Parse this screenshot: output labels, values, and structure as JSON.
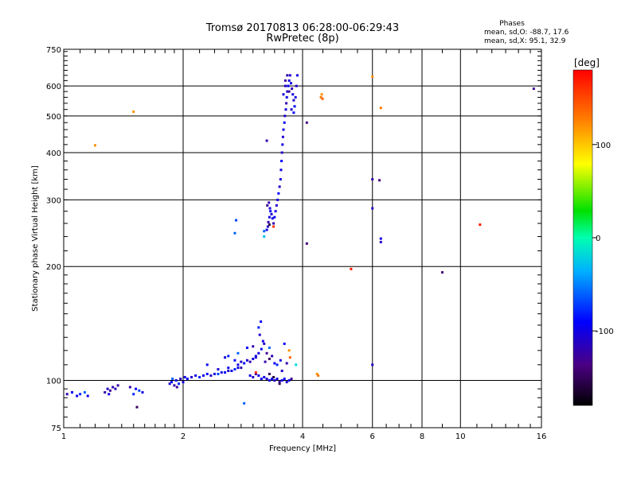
{
  "chart_data": {
    "type": "scatter",
    "title": "Tromsø 20170813 06:28:00-06:29:43",
    "subtitle": "RwPretec (8p)",
    "xlabel": "Frequency [MHz]",
    "ylabel": "Stationary phase Virtual Height [km]",
    "x_scale": "log",
    "y_scale": "log",
    "xlim": [
      1,
      16
    ],
    "ylim": [
      75,
      750
    ],
    "x_ticks": [
      1,
      2,
      4,
      6,
      8,
      10,
      16
    ],
    "y_ticks": [
      75,
      100,
      200,
      300,
      400,
      500,
      600,
      750
    ],
    "grid": true,
    "phase_info": {
      "heading": "Phases",
      "line_o": "mean, sd,O: -88.7, 17.6",
      "line_x": "mean, sd,X:  95.1, 32.9"
    },
    "colorbar": {
      "label": "[deg]",
      "range": [
        -180,
        180
      ],
      "ticks": [
        100,
        0,
        -100
      ],
      "tick_labels": [
        "100",
        "0",
        "-100"
      ]
    },
    "points": [
      [
        1.02,
        92,
        -120
      ],
      [
        1.05,
        93,
        -90
      ],
      [
        1.08,
        91,
        -100
      ],
      [
        1.1,
        92,
        -80
      ],
      [
        1.13,
        93,
        -60
      ],
      [
        1.15,
        91,
        -100
      ],
      [
        1.27,
        93,
        -120
      ],
      [
        1.29,
        95,
        -110
      ],
      [
        1.31,
        94,
        -130
      ],
      [
        1.33,
        96,
        -120
      ],
      [
        1.35,
        95,
        -115
      ],
      [
        1.37,
        97,
        -125
      ],
      [
        1.3,
        92,
        -100
      ],
      [
        1.5,
        92,
        -80
      ],
      [
        1.52,
        95,
        -90
      ],
      [
        1.55,
        94,
        -70
      ],
      [
        1.58,
        93,
        -100
      ],
      [
        1.47,
        96,
        -120
      ],
      [
        1.53,
        85,
        -150
      ],
      [
        1.85,
        98,
        -110
      ],
      [
        1.87,
        99,
        -90
      ],
      [
        1.9,
        97,
        -120
      ],
      [
        1.92,
        100,
        -100
      ],
      [
        1.95,
        98,
        -80
      ],
      [
        1.97,
        101,
        -115
      ],
      [
        2.0,
        99,
        -100
      ],
      [
        1.88,
        101,
        -60
      ],
      [
        1.93,
        96,
        -130
      ],
      [
        2.02,
        102,
        -100
      ],
      [
        2.05,
        101,
        -90
      ],
      [
        2.1,
        102,
        -110
      ],
      [
        2.15,
        103,
        -100
      ],
      [
        2.2,
        102,
        -80
      ],
      [
        2.25,
        103,
        -100
      ],
      [
        2.3,
        104,
        -90
      ],
      [
        2.35,
        103,
        -110
      ],
      [
        2.4,
        104,
        -100
      ],
      [
        2.45,
        104,
        -70
      ],
      [
        2.5,
        105,
        -100
      ],
      [
        2.55,
        105,
        -90
      ],
      [
        2.6,
        106,
        -110
      ],
      [
        2.65,
        106,
        -100
      ],
      [
        2.7,
        107,
        -80
      ],
      [
        2.75,
        108,
        -100
      ],
      [
        2.8,
        108,
        -120
      ],
      [
        2.3,
        110,
        -90
      ],
      [
        2.45,
        107,
        -110
      ],
      [
        2.55,
        115,
        -100
      ],
      [
        2.6,
        108,
        -95
      ],
      [
        2.7,
        113,
        -90
      ],
      [
        2.75,
        110,
        -100
      ],
      [
        2.8,
        112,
        -110
      ],
      [
        2.85,
        111,
        -90
      ],
      [
        2.9,
        113,
        -100
      ],
      [
        2.95,
        112,
        -120
      ],
      [
        3.0,
        114,
        -100
      ],
      [
        3.05,
        115,
        -110
      ],
      [
        3.1,
        118,
        -100
      ],
      [
        3.15,
        121,
        -90
      ],
      [
        3.2,
        125,
        -110
      ],
      [
        2.6,
        116,
        -80
      ],
      [
        2.75,
        118,
        -60
      ],
      [
        2.85,
        87,
        -60
      ],
      [
        2.9,
        122,
        -90
      ],
      [
        3.0,
        123,
        -120
      ],
      [
        3.05,
        116,
        -100
      ],
      [
        3.1,
        138,
        -80
      ],
      [
        3.12,
        132,
        -110
      ],
      [
        3.14,
        143,
        -90
      ],
      [
        3.18,
        127,
        -100
      ],
      [
        3.22,
        112,
        -120
      ],
      [
        3.25,
        118,
        -130
      ],
      [
        3.3,
        114,
        -150
      ],
      [
        3.35,
        116,
        -120
      ],
      [
        3.4,
        111,
        -100
      ],
      [
        3.45,
        110,
        -80
      ],
      [
        3.52,
        113,
        -100
      ],
      [
        3.55,
        106,
        -110
      ],
      [
        3.3,
        122,
        -60
      ],
      [
        3.6,
        125,
        -90
      ],
      [
        3.65,
        111,
        -120
      ],
      [
        2.95,
        103,
        -100
      ],
      [
        3.0,
        102,
        -110
      ],
      [
        3.05,
        104,
        -120
      ],
      [
        3.1,
        103,
        -100
      ],
      [
        3.15,
        101,
        -90
      ],
      [
        3.2,
        102,
        -100
      ],
      [
        3.25,
        101,
        -110
      ],
      [
        3.3,
        100,
        -100
      ],
      [
        3.35,
        101,
        -90
      ],
      [
        3.4,
        100,
        -110
      ],
      [
        3.45,
        101,
        -100
      ],
      [
        3.5,
        99,
        -120
      ],
      [
        3.55,
        100,
        -100
      ],
      [
        3.6,
        101,
        -90
      ],
      [
        3.65,
        99,
        -110
      ],
      [
        3.7,
        100,
        -100
      ],
      [
        3.75,
        101,
        -130
      ],
      [
        3.3,
        104,
        -150
      ],
      [
        3.38,
        102,
        -160
      ],
      [
        3.05,
        105,
        160
      ],
      [
        3.5,
        98,
        -150
      ],
      [
        3.7,
        120,
        120
      ],
      [
        3.72,
        115,
        140
      ],
      [
        3.85,
        110,
        -20
      ],
      [
        4.35,
        104,
        120
      ],
      [
        4.38,
        103,
        130
      ],
      [
        3.25,
        250,
        -100
      ],
      [
        3.27,
        255,
        -110
      ],
      [
        3.28,
        262,
        -120
      ],
      [
        3.3,
        270,
        -100
      ],
      [
        3.32,
        280,
        -90
      ],
      [
        3.26,
        290,
        -130
      ],
      [
        3.29,
        295,
        -120
      ],
      [
        3.31,
        285,
        -100
      ],
      [
        3.34,
        275,
        -110
      ],
      [
        3.36,
        268,
        -100
      ],
      [
        3.38,
        260,
        -120
      ],
      [
        3.4,
        270,
        -90
      ],
      [
        3.42,
        280,
        -100
      ],
      [
        3.44,
        290,
        -110
      ],
      [
        3.46,
        300,
        -100
      ],
      [
        3.48,
        312,
        -90
      ],
      [
        3.5,
        325,
        -110
      ],
      [
        3.52,
        340,
        -100
      ],
      [
        3.53,
        360,
        -100
      ],
      [
        3.54,
        380,
        -90
      ],
      [
        3.55,
        400,
        -110
      ],
      [
        3.56,
        420,
        -100
      ],
      [
        3.57,
        440,
        -110
      ],
      [
        3.58,
        460,
        -100
      ],
      [
        3.6,
        480,
        -90
      ],
      [
        3.61,
        500,
        -110
      ],
      [
        3.63,
        520,
        -100
      ],
      [
        3.64,
        540,
        -120
      ],
      [
        3.65,
        560,
        -100
      ],
      [
        3.66,
        580,
        -110
      ],
      [
        3.68,
        600,
        -90
      ],
      [
        3.7,
        620,
        -100
      ],
      [
        3.72,
        640,
        -110
      ],
      [
        3.74,
        610,
        -100
      ],
      [
        3.76,
        590,
        -120
      ],
      [
        3.78,
        570,
        -100
      ],
      [
        3.8,
        550,
        -110
      ],
      [
        3.82,
        530,
        -90
      ],
      [
        3.84,
        560,
        -100
      ],
      [
        3.86,
        600,
        -110
      ],
      [
        3.88,
        640,
        -100
      ],
      [
        3.62,
        620,
        -130
      ],
      [
        3.66,
        640,
        -120
      ],
      [
        3.7,
        580,
        -130
      ],
      [
        3.75,
        520,
        -110
      ],
      [
        3.8,
        510,
        -90
      ],
      [
        3.58,
        570,
        -100
      ],
      [
        3.62,
        600,
        -110
      ],
      [
        3.3,
        258,
        -160
      ],
      [
        3.38,
        255,
        160
      ],
      [
        3.2,
        248,
        -60
      ],
      [
        2.72,
        265,
        -70
      ],
      [
        2.7,
        245,
        -60
      ],
      [
        3.2,
        240,
        -30
      ],
      [
        3.25,
        430,
        -120
      ],
      [
        1.2,
        418,
        120
      ],
      [
        1.5,
        513,
        120
      ],
      [
        4.45,
        560,
        130
      ],
      [
        4.47,
        570,
        120
      ],
      [
        4.49,
        555,
        140
      ],
      [
        6.0,
        635,
        120
      ],
      [
        6.3,
        525,
        130
      ],
      [
        11.2,
        258,
        170
      ],
      [
        5.3,
        197,
        170
      ],
      [
        4.1,
        480,
        -140
      ],
      [
        4.1,
        230,
        -140
      ],
      [
        6.0,
        340,
        -120
      ],
      [
        6.25,
        338,
        -140
      ],
      [
        6.0,
        285,
        -110
      ],
      [
        6.3,
        237,
        -100
      ],
      [
        6.3,
        232,
        -110
      ],
      [
        6.0,
        110,
        -110
      ],
      [
        9.0,
        193,
        -140
      ],
      [
        15.3,
        590,
        -130
      ]
    ]
  }
}
